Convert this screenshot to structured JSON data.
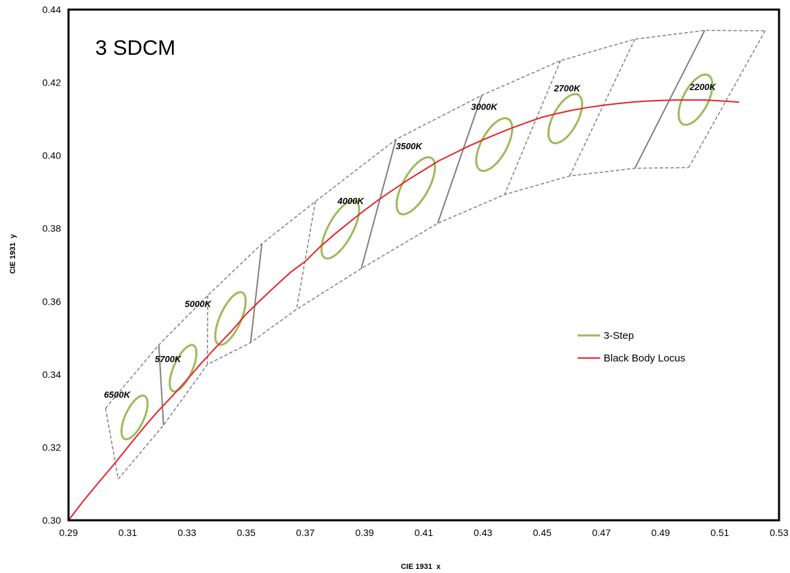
{
  "chart_data": {
    "type": "line",
    "title": "3 SDCM",
    "xlabel": "CIE 1931  x",
    "ylabel": "CIE 1931  y",
    "xlim": [
      0.29,
      0.53
    ],
    "ylim": [
      0.3,
      0.44
    ],
    "xticks": [
      "0.29",
      "0.31",
      "0.33",
      "0.35",
      "0.37",
      "0.39",
      "0.41",
      "0.43",
      "0.45",
      "0.47",
      "0.49",
      "0.51",
      "0.53"
    ],
    "yticks": [
      "0.30",
      "0.32",
      "0.34",
      "0.36",
      "0.38",
      "0.40",
      "0.42",
      "0.44"
    ],
    "grid": false,
    "legend_position": "right-middle",
    "colors": {
      "ellipse": "#9bbb59",
      "locus": "#e8222a",
      "quadrangle": "#808080"
    },
    "series": [
      {
        "name": "3-Step",
        "ellipses": [
          {
            "cct": "6500K",
            "x": 0.3123,
            "y": 0.3282,
            "a": 0.0068,
            "b": 0.003,
            "angle_deg": 58
          },
          {
            "cct": "5700K",
            "x": 0.3287,
            "y": 0.3417,
            "a": 0.0072,
            "b": 0.003,
            "angle_deg": 59
          },
          {
            "cct": "5000K",
            "x": 0.3447,
            "y": 0.3553,
            "a": 0.0082,
            "b": 0.0034,
            "angle_deg": 59
          },
          {
            "cct": "4000K",
            "x": 0.3818,
            "y": 0.3797,
            "a": 0.0094,
            "b": 0.0039,
            "angle_deg": 54
          },
          {
            "cct": "3500K",
            "x": 0.4073,
            "y": 0.3917,
            "a": 0.0093,
            "b": 0.0041,
            "angle_deg": 53
          },
          {
            "cct": "3000K",
            "x": 0.4338,
            "y": 0.403,
            "a": 0.0085,
            "b": 0.0041,
            "angle_deg": 53
          },
          {
            "cct": "2700K",
            "x": 0.4578,
            "y": 0.4101,
            "a": 0.0079,
            "b": 0.0039,
            "angle_deg": 53
          },
          {
            "cct": "2200K",
            "x": 0.5018,
            "y": 0.4153,
            "a": 0.008,
            "b": 0.004,
            "angle_deg": 54
          }
        ]
      },
      {
        "name": "Black Body Locus",
        "x": [
          0.29,
          0.295,
          0.3,
          0.305,
          0.31,
          0.315,
          0.32,
          0.325,
          0.33,
          0.335,
          0.34,
          0.345,
          0.35,
          0.355,
          0.36,
          0.365,
          0.37,
          0.375,
          0.38,
          0.385,
          0.39,
          0.395,
          0.4,
          0.405,
          0.41,
          0.415,
          0.42,
          0.425,
          0.43,
          0.435,
          0.44,
          0.445,
          0.45,
          0.455,
          0.46,
          0.465,
          0.47,
          0.475,
          0.48,
          0.485,
          0.49,
          0.495,
          0.5,
          0.505,
          0.51,
          0.5165
        ],
        "y": [
          0.3,
          0.3053,
          0.3102,
          0.315,
          0.32,
          0.325,
          0.3297,
          0.334,
          0.3385,
          0.3432,
          0.3476,
          0.3518,
          0.3565,
          0.3605,
          0.3643,
          0.368,
          0.371,
          0.375,
          0.3785,
          0.3818,
          0.385,
          0.388,
          0.3908,
          0.3935,
          0.396,
          0.3985,
          0.4005,
          0.4025,
          0.4043,
          0.406,
          0.4076,
          0.4091,
          0.4105,
          0.4115,
          0.4124,
          0.4131,
          0.4137,
          0.4142,
          0.4146,
          0.4149,
          0.4151,
          0.4152,
          0.4152,
          0.4152,
          0.415,
          0.4146
        ]
      }
    ],
    "quadrangles": {
      "outer_top": [
        [
          0.3025,
          0.3307
        ],
        [
          0.3205,
          0.3481
        ],
        [
          0.337,
          0.3616
        ],
        [
          0.3553,
          0.3758
        ],
        [
          0.3734,
          0.3874
        ],
        [
          0.4006,
          0.4044
        ],
        [
          0.4296,
          0.4165
        ],
        [
          0.4562,
          0.426
        ],
        [
          0.4813,
          0.4319
        ],
        [
          0.5049,
          0.4343
        ],
        [
          0.5253,
          0.4342
        ]
      ],
      "outer_bottom": [
        [
          0.3068,
          0.3113
        ],
        [
          0.3221,
          0.3261
        ],
        [
          0.3369,
          0.3427
        ],
        [
          0.3515,
          0.3487
        ],
        [
          0.367,
          0.3578
        ],
        [
          0.3889,
          0.369
        ],
        [
          0.4147,
          0.3814
        ],
        [
          0.4373,
          0.3893
        ],
        [
          0.4593,
          0.3944
        ],
        [
          0.4813,
          0.3965
        ],
        [
          0.4995,
          0.3967
        ]
      ],
      "solid_dividers": [
        [
          0.3205,
          0.3481,
          0.3221,
          0.3261
        ],
        [
          0.3553,
          0.3758,
          0.3515,
          0.3487
        ],
        [
          0.4006,
          0.4044,
          0.3889,
          0.369
        ],
        [
          0.4296,
          0.4165,
          0.4147,
          0.3814
        ],
        [
          0.5049,
          0.4343,
          0.4813,
          0.3965
        ]
      ],
      "dashed_dividers": [
        [
          0.3025,
          0.3307,
          0.3068,
          0.3113
        ],
        [
          0.337,
          0.3616,
          0.3369,
          0.3427
        ],
        [
          0.3734,
          0.3874,
          0.367,
          0.3578
        ],
        [
          0.4562,
          0.426,
          0.4373,
          0.3893
        ],
        [
          0.4813,
          0.4319,
          0.4593,
          0.3944
        ],
        [
          0.5253,
          0.4342,
          0.4995,
          0.3967
        ]
      ]
    },
    "cct_labels": [
      {
        "text": "6500K",
        "x": 0.3064,
        "y": 0.3345
      },
      {
        "text": "5700K",
        "x": 0.3236,
        "y": 0.3443
      },
      {
        "text": "5000K",
        "x": 0.3337,
        "y": 0.3594
      },
      {
        "text": "4000K",
        "x": 0.3853,
        "y": 0.3876
      },
      {
        "text": "3500K",
        "x": 0.405,
        "y": 0.4027
      },
      {
        "text": "3000K",
        "x": 0.4304,
        "y": 0.4134
      },
      {
        "text": "2700K",
        "x": 0.4584,
        "y": 0.4185
      },
      {
        "text": "2200K",
        "x": 0.5042,
        "y": 0.4189
      }
    ]
  }
}
